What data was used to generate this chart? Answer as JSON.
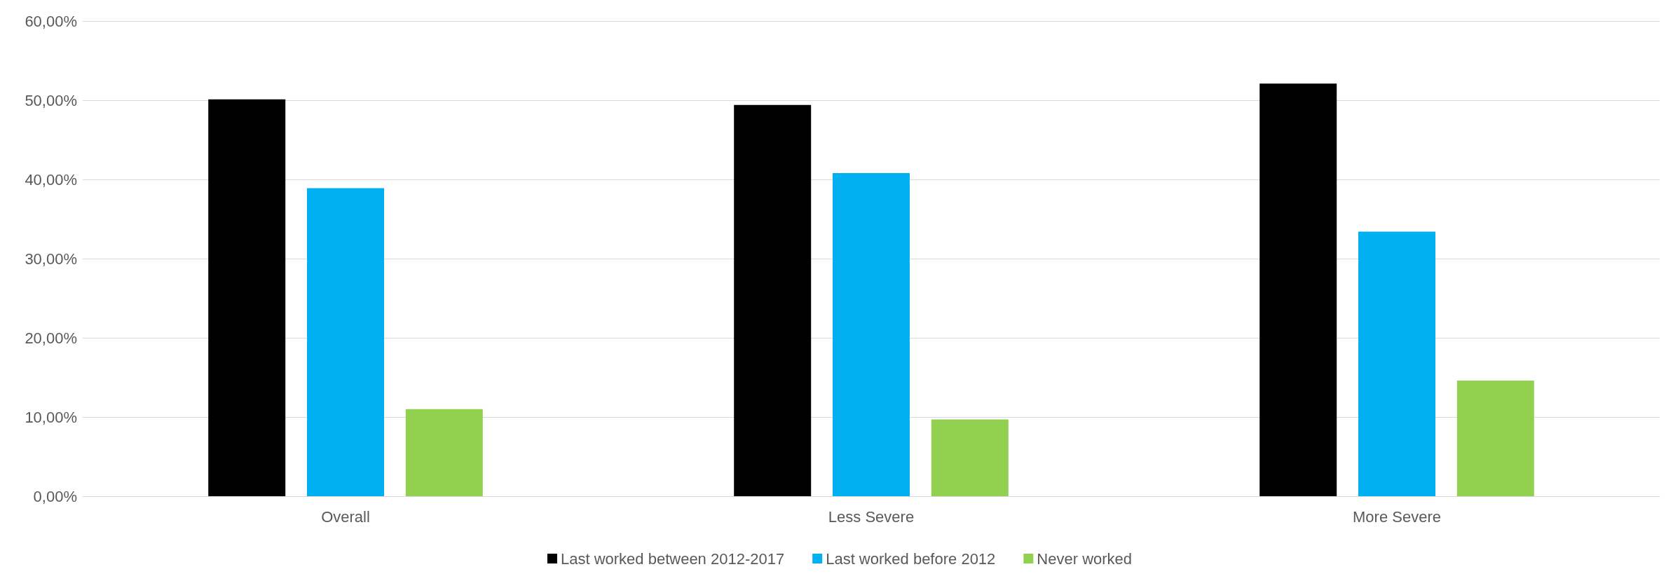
{
  "chart_data": {
    "type": "bar",
    "categories": [
      "Overall",
      "Less Severe",
      "More Severe"
    ],
    "series": [
      {
        "name": "Last worked between 2012-2017",
        "color": "#000000",
        "values": [
          50.1,
          49.4,
          52.1
        ]
      },
      {
        "name": "Last worked before 2012",
        "color": "#00b0f0",
        "values": [
          38.9,
          40.8,
          33.4
        ]
      },
      {
        "name": "Never worked",
        "color": "#92d050",
        "values": [
          11.0,
          9.7,
          14.6
        ]
      }
    ],
    "ylim": [
      0,
      60
    ],
    "yticks": [
      {
        "value": 0,
        "label": "0,00%"
      },
      {
        "value": 10,
        "label": "10,00%"
      },
      {
        "value": 20,
        "label": "20,00%"
      },
      {
        "value": 30,
        "label": "30,00%"
      },
      {
        "value": 40,
        "label": "40,00%"
      },
      {
        "value": 50,
        "label": "50,00%"
      },
      {
        "value": 60,
        "label": "60,00%"
      }
    ],
    "grid": "y",
    "legend": "bottom"
  }
}
